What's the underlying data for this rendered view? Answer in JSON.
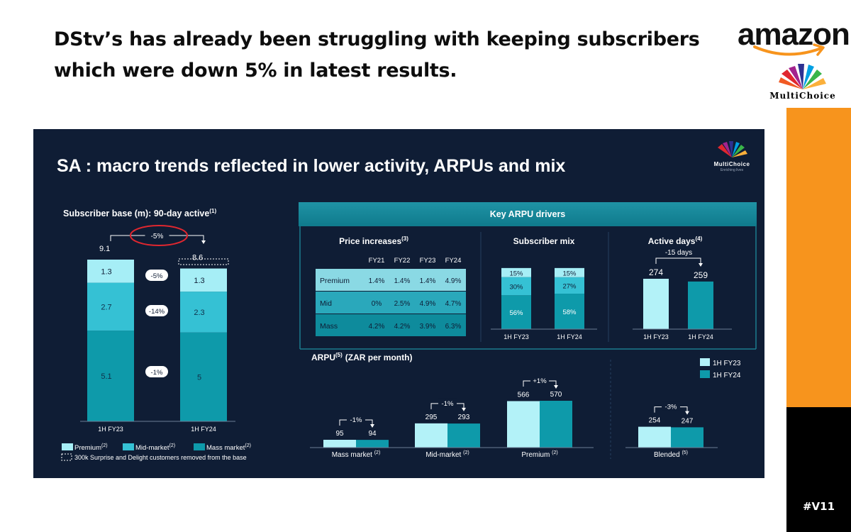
{
  "headline": "DStv’s has already been struggling with keeping subscribers which were down 5% in latest results.",
  "logos": {
    "amazon": "amazon",
    "multichoice": "MultiChoice",
    "slide_logo": "MultiChoice",
    "slide_logo_sub": "Enriching lives"
  },
  "tag": "#V11",
  "colors": {
    "orange": "#f7941d",
    "slide_bg": "#0f1d35",
    "premium": "#a6eef6",
    "mid": "#35c1d4",
    "mass": "#0e9aaa",
    "fy23": "#b3f2f8",
    "fy24": "#0e9aaa",
    "annotation": "#e0272f"
  },
  "slide": {
    "title": "SA : macro trends reflected in lower activity, ARPUs and mix",
    "subs_title": "Subscriber base (m): 90-day active",
    "subs_title_sup": "(1)",
    "ribbon": "Key ARPU drivers",
    "price_title": "Price increases",
    "price_sup": "(3)",
    "mix_title": "Subscriber mix",
    "active_title": "Active days",
    "active_sup": "(4)",
    "arpu_title": "ARPU",
    "arpu_sup": "(5)",
    "arpu_unit": "(ZAR per month)",
    "legend": [
      "Premium",
      "Mid-market",
      "Mass market"
    ],
    "legend_sup": "(2)",
    "note": "300k Surprise and Delight customers removed from the base"
  },
  "chart_data": [
    {
      "type": "bar",
      "title": "Subscriber base (m): 90-day active",
      "stacked": true,
      "categories": [
        "1H FY23",
        "1H FY24"
      ],
      "totals": [
        9.1,
        8.6
      ],
      "total_change": "-5%",
      "series": [
        {
          "name": "Mass market",
          "values": [
            5.1,
            5.0
          ],
          "change": "-1%"
        },
        {
          "name": "Mid-market",
          "values": [
            2.7,
            2.3
          ],
          "change": "-14%"
        },
        {
          "name": "Premium",
          "values": [
            1.3,
            1.3
          ],
          "change": "-5%"
        }
      ]
    },
    {
      "type": "table",
      "title": "Price increases",
      "columns": [
        "",
        "FY21",
        "FY22",
        "FY23",
        "FY24"
      ],
      "rows": [
        [
          "Premium",
          "1.4%",
          "1.4%",
          "1.4%",
          "4.9%"
        ],
        [
          "Mid",
          "0%",
          "2.5%",
          "4.9%",
          "4.7%"
        ],
        [
          "Mass",
          "4.2%",
          "4.2%",
          "3.9%",
          "6.3%"
        ]
      ]
    },
    {
      "type": "bar",
      "title": "Subscriber mix",
      "stacked": true,
      "categories": [
        "1H FY23",
        "1H FY24"
      ],
      "series": [
        {
          "name": "Mass market",
          "values": [
            56,
            58
          ],
          "labels": [
            "56%",
            "58%"
          ]
        },
        {
          "name": "Mid-market",
          "values": [
            30,
            27
          ],
          "labels": [
            "30%",
            "27%"
          ]
        },
        {
          "name": "Premium",
          "values": [
            15,
            15
          ],
          "labels": [
            "15%",
            "15%"
          ]
        }
      ]
    },
    {
      "type": "bar",
      "title": "Active days",
      "categories": [
        "1H FY23",
        "1H FY24"
      ],
      "values": [
        274,
        259
      ],
      "change": "-15 days"
    },
    {
      "type": "bar",
      "title": "ARPU (ZAR per month)",
      "categories": [
        "Mass market",
        "Mid-market",
        "Premium",
        "Blended"
      ],
      "category_sup": [
        "(2)",
        "(2)",
        "(2)",
        "(5)"
      ],
      "series": [
        {
          "name": "1H FY23",
          "values": [
            95,
            295,
            566,
            254
          ]
        },
        {
          "name": "1H FY24",
          "values": [
            94,
            293,
            570,
            247
          ]
        }
      ],
      "changes": [
        "-1%",
        "-1%",
        "+1%",
        "-3%"
      ]
    }
  ]
}
